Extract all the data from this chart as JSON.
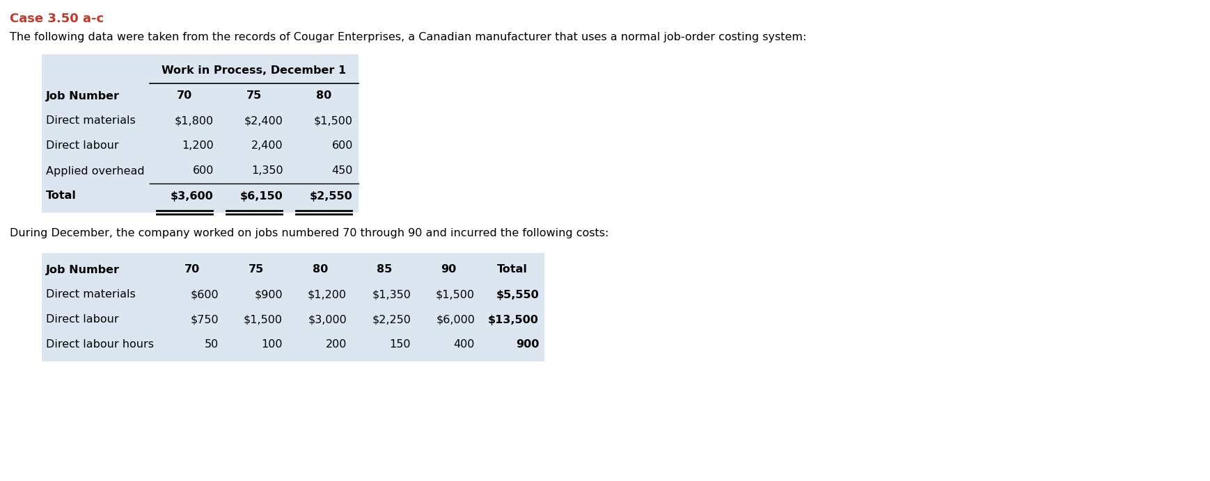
{
  "title": "Case 3.50 a-c",
  "title_color": "#c0392b",
  "subtitle": "The following data were taken from the records of Cougar Enterprises, a Canadian manufacturer that uses a normal job-order costing system:",
  "table1_header_main": "Work in Process, December 1",
  "table1_col0_header": "Job Number",
  "table1_col_headers": [
    "70",
    "75",
    "80"
  ],
  "table1_rows": [
    [
      "Direct materials",
      "$1,800",
      "$2,400",
      "$1,500"
    ],
    [
      "Direct labour",
      "1,200",
      "2,400",
      "600"
    ],
    [
      "Applied overhead",
      "600",
      "1,350",
      "450"
    ],
    [
      "Total",
      "$3,600",
      "$6,150",
      "$2,550"
    ]
  ],
  "between_text": "During December, the company worked on jobs numbered 70 through 90 and incurred the following costs:",
  "table2_col0_header": "Job Number",
  "table2_col_headers": [
    "70",
    "75",
    "80",
    "85",
    "90",
    "Total"
  ],
  "table2_rows": [
    [
      "Direct materials",
      "$600",
      "$900",
      "$1,200",
      "$1,350",
      "$1,500",
      "$5,550"
    ],
    [
      "Direct labour",
      "$750",
      "$1,500",
      "$3,000",
      "$2,250",
      "$6,000",
      "$13,500"
    ],
    [
      "Direct labour hours",
      "50",
      "100",
      "200",
      "150",
      "400",
      "900"
    ]
  ],
  "bg_color": "#ffffff",
  "table_bg": "#dce6f1",
  "text_color": "#000000"
}
